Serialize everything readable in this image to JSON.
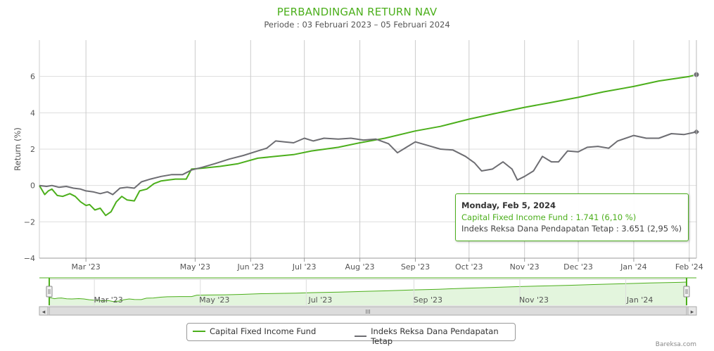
{
  "title": "PERBANDINGAN RETURN NAV",
  "subtitle": "Periode : 03 Februari 2023 – 05 Februari 2024",
  "credit": "Bareksa.com",
  "colors": {
    "fund": "#4caf1c",
    "index": "#6d6d72",
    "title": "#4caf1c",
    "navigator_fill": "#e3f5dd"
  },
  "tooltip": {
    "date": "Monday, Feb 5, 2024",
    "row1": "Capital Fixed Income Fund : 1.741 (6,10 %)",
    "row2": "Indeks Reksa Dana Pendapatan Tetap : 3.651 (2,95 %)"
  },
  "legend": {
    "fund": "Capital Fixed Income Fund",
    "index": "Indeks Reksa Dana Pendapatan Tetap"
  },
  "navigator": {
    "labels": [
      "Mar '23",
      "May '23",
      "Jul '23",
      "Sep '23",
      "Nov '23",
      "Jan '24"
    ],
    "scroll_glyph": "III",
    "left_arrow": "◂",
    "right_arrow": "▸"
  },
  "chart_data": {
    "type": "line",
    "title": "PERBANDINGAN RETURN NAV",
    "ylabel": "Return (%)",
    "xlabel": "",
    "ylim": [
      -4,
      8
    ],
    "yticks": [
      -4,
      -2,
      0,
      2,
      4,
      6
    ],
    "ytick_labels": [
      "−4",
      "−2",
      "0",
      "2",
      "4",
      "6"
    ],
    "xlim": [
      "2023-02-03",
      "2024-02-05"
    ],
    "xticks": [
      "2023-03-01",
      "2023-05-01",
      "2023-06-01",
      "2023-07-01",
      "2023-08-01",
      "2023-09-01",
      "2023-10-01",
      "2023-11-01",
      "2023-12-01",
      "2024-01-01",
      "2024-02-01"
    ],
    "xtick_labels": [
      "Mar '23",
      "May '23",
      "Jun '23",
      "Jul '23",
      "Aug '23",
      "Sep '23",
      "Oct '23",
      "Nov '23",
      "Dec '23",
      "Jan '24",
      "Feb '24"
    ],
    "grid": true,
    "legend_position": "bottom",
    "series": [
      {
        "name": "Capital Fixed Income Fund",
        "color": "#4caf1c",
        "points": [
          [
            "2023-02-03",
            0.0
          ],
          [
            "2023-02-06",
            -0.5
          ],
          [
            "2023-02-08",
            -0.3
          ],
          [
            "2023-02-10",
            -0.2
          ],
          [
            "2023-02-13",
            -0.55
          ],
          [
            "2023-02-16",
            -0.6
          ],
          [
            "2023-02-20",
            -0.45
          ],
          [
            "2023-02-23",
            -0.6
          ],
          [
            "2023-02-26",
            -0.9
          ],
          [
            "2023-03-01",
            -1.1
          ],
          [
            "2023-03-03",
            -1.05
          ],
          [
            "2023-03-06",
            -1.35
          ],
          [
            "2023-03-09",
            -1.25
          ],
          [
            "2023-03-12",
            -1.65
          ],
          [
            "2023-03-15",
            -1.45
          ],
          [
            "2023-03-18",
            -0.9
          ],
          [
            "2023-03-21",
            -0.6
          ],
          [
            "2023-03-24",
            -0.8
          ],
          [
            "2023-03-28",
            -0.85
          ],
          [
            "2023-03-31",
            -0.3
          ],
          [
            "2023-04-04",
            -0.2
          ],
          [
            "2023-04-08",
            0.1
          ],
          [
            "2023-04-12",
            0.25
          ],
          [
            "2023-04-16",
            0.3
          ],
          [
            "2023-04-20",
            0.35
          ],
          [
            "2023-04-26",
            0.35
          ],
          [
            "2023-04-29",
            0.9
          ],
          [
            "2023-05-05",
            0.95
          ],
          [
            "2023-05-15",
            1.05
          ],
          [
            "2023-05-25",
            1.2
          ],
          [
            "2023-06-05",
            1.5
          ],
          [
            "2023-06-15",
            1.6
          ],
          [
            "2023-06-25",
            1.7
          ],
          [
            "2023-07-05",
            1.9
          ],
          [
            "2023-07-20",
            2.1
          ],
          [
            "2023-08-01",
            2.35
          ],
          [
            "2023-08-15",
            2.6
          ],
          [
            "2023-09-01",
            3.0
          ],
          [
            "2023-09-15",
            3.25
          ],
          [
            "2023-10-01",
            3.65
          ],
          [
            "2023-10-15",
            3.95
          ],
          [
            "2023-11-01",
            4.3
          ],
          [
            "2023-11-15",
            4.55
          ],
          [
            "2023-12-01",
            4.85
          ],
          [
            "2023-12-15",
            5.15
          ],
          [
            "2024-01-01",
            5.45
          ],
          [
            "2024-01-15",
            5.75
          ],
          [
            "2024-02-01",
            6.0
          ],
          [
            "2024-02-05",
            6.1
          ]
        ]
      },
      {
        "name": "Indeks Reksa Dana Pendapatan Tetap",
        "color": "#6d6d72",
        "points": [
          [
            "2023-02-03",
            0.0
          ],
          [
            "2023-02-07",
            -0.05
          ],
          [
            "2023-02-10",
            0.0
          ],
          [
            "2023-02-14",
            -0.1
          ],
          [
            "2023-02-18",
            -0.05
          ],
          [
            "2023-02-22",
            -0.15
          ],
          [
            "2023-02-26",
            -0.2
          ],
          [
            "2023-03-01",
            -0.3
          ],
          [
            "2023-03-05",
            -0.35
          ],
          [
            "2023-03-09",
            -0.45
          ],
          [
            "2023-03-13",
            -0.35
          ],
          [
            "2023-03-16",
            -0.5
          ],
          [
            "2023-03-20",
            -0.15
          ],
          [
            "2023-03-24",
            -0.1
          ],
          [
            "2023-03-28",
            -0.15
          ],
          [
            "2023-04-01",
            0.2
          ],
          [
            "2023-04-06",
            0.35
          ],
          [
            "2023-04-12",
            0.5
          ],
          [
            "2023-04-18",
            0.6
          ],
          [
            "2023-04-24",
            0.6
          ],
          [
            "2023-04-29",
            0.85
          ],
          [
            "2023-05-05",
            1.0
          ],
          [
            "2023-05-12",
            1.2
          ],
          [
            "2023-05-20",
            1.45
          ],
          [
            "2023-05-28",
            1.65
          ],
          [
            "2023-06-05",
            1.9
          ],
          [
            "2023-06-10",
            2.05
          ],
          [
            "2023-06-15",
            2.45
          ],
          [
            "2023-06-20",
            2.4
          ],
          [
            "2023-06-25",
            2.35
          ],
          [
            "2023-07-01",
            2.6
          ],
          [
            "2023-07-06",
            2.45
          ],
          [
            "2023-07-12",
            2.6
          ],
          [
            "2023-07-20",
            2.55
          ],
          [
            "2023-07-27",
            2.6
          ],
          [
            "2023-08-03",
            2.5
          ],
          [
            "2023-08-10",
            2.55
          ],
          [
            "2023-08-17",
            2.3
          ],
          [
            "2023-08-22",
            1.8
          ],
          [
            "2023-08-27",
            2.1
          ],
          [
            "2023-09-01",
            2.4
          ],
          [
            "2023-09-08",
            2.2
          ],
          [
            "2023-09-15",
            2.0
          ],
          [
            "2023-09-22",
            1.95
          ],
          [
            "2023-09-29",
            1.6
          ],
          [
            "2023-10-04",
            1.25
          ],
          [
            "2023-10-08",
            0.8
          ],
          [
            "2023-10-14",
            0.9
          ],
          [
            "2023-10-20",
            1.3
          ],
          [
            "2023-10-25",
            0.9
          ],
          [
            "2023-10-28",
            0.3
          ],
          [
            "2023-11-01",
            0.5
          ],
          [
            "2023-11-06",
            0.8
          ],
          [
            "2023-11-11",
            1.6
          ],
          [
            "2023-11-16",
            1.3
          ],
          [
            "2023-11-20",
            1.3
          ],
          [
            "2023-11-25",
            1.9
          ],
          [
            "2023-12-01",
            1.85
          ],
          [
            "2023-12-06",
            2.1
          ],
          [
            "2023-12-12",
            2.15
          ],
          [
            "2023-12-18",
            2.05
          ],
          [
            "2023-12-23",
            2.45
          ],
          [
            "2024-01-01",
            2.75
          ],
          [
            "2024-01-08",
            2.6
          ],
          [
            "2024-01-15",
            2.6
          ],
          [
            "2024-01-22",
            2.85
          ],
          [
            "2024-01-29",
            2.8
          ],
          [
            "2024-02-05",
            2.95
          ]
        ]
      }
    ]
  }
}
